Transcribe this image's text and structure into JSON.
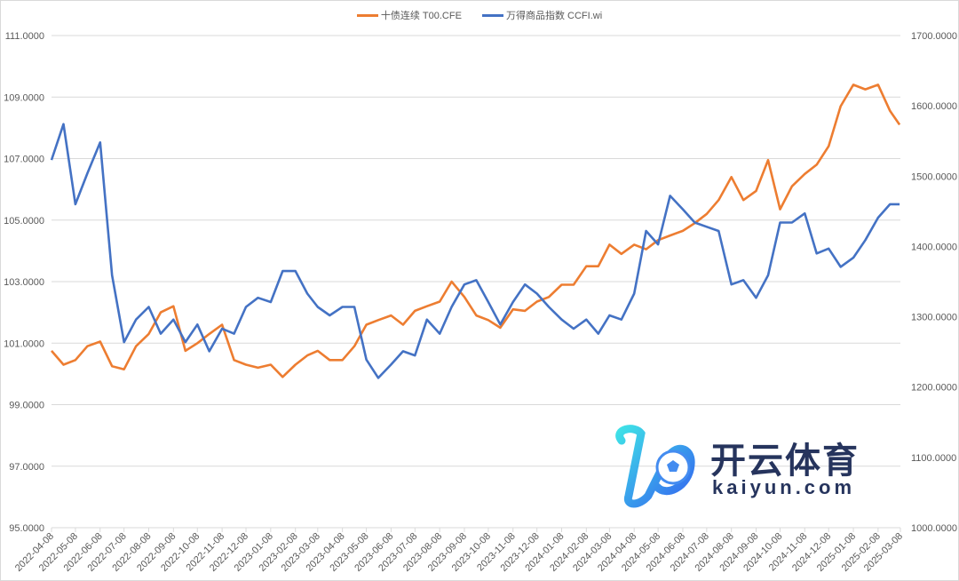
{
  "chart_data": {
    "type": "line",
    "title": "",
    "legend_position": "top",
    "grid": true,
    "y_left": {
      "min": 95,
      "max": 111,
      "step": 2,
      "ticks": [
        "95.0000",
        "97.0000",
        "99.0000",
        "101.0000",
        "103.0000",
        "105.0000",
        "107.0000",
        "109.0000",
        "111.0000"
      ]
    },
    "y_right": {
      "min": 1000,
      "max": 1700,
      "step": 100,
      "ticks": [
        "1000.0000",
        "1100.0000",
        "1200.0000",
        "1300.0000",
        "1400.0000",
        "1500.0000",
        "1600.0000",
        "1700.0000"
      ]
    },
    "x_ticks": [
      "2022-04-08",
      "2022-05-08",
      "2022-06-08",
      "2022-07-08",
      "2022-08-08",
      "2022-09-08",
      "2022-10-08",
      "2022-11-08",
      "2022-12-08",
      "2023-01-08",
      "2023-02-08",
      "2023-03-08",
      "2023-04-08",
      "2023-05-08",
      "2023-06-08",
      "2023-07-08",
      "2023-08-08",
      "2023-09-08",
      "2023-10-08",
      "2023-11-08",
      "2023-12-08",
      "2024-01-08",
      "2024-02-08",
      "2024-03-08",
      "2024-04-08",
      "2024-05-08",
      "2024-06-08",
      "2024-07-08",
      "2024-08-08",
      "2024-09-08",
      "2024-10-08",
      "2024-11-08",
      "2024-12-08",
      "2025-01-08",
      "2025-02-08",
      "2025-03-08"
    ],
    "x": [
      "2022-04-08",
      "2022-04-23",
      "2022-05-08",
      "2022-05-23",
      "2022-06-08",
      "2022-06-23",
      "2022-07-08",
      "2022-07-23",
      "2022-08-08",
      "2022-08-23",
      "2022-09-08",
      "2022-09-23",
      "2022-10-08",
      "2022-10-23",
      "2022-11-08",
      "2022-11-23",
      "2022-12-08",
      "2022-12-23",
      "2023-01-08",
      "2023-01-23",
      "2023-02-08",
      "2023-02-23",
      "2023-03-08",
      "2023-03-23",
      "2023-04-08",
      "2023-04-23",
      "2023-05-08",
      "2023-05-23",
      "2023-06-08",
      "2023-06-23",
      "2023-07-08",
      "2023-07-23",
      "2023-08-08",
      "2023-08-23",
      "2023-09-08",
      "2023-09-23",
      "2023-10-08",
      "2023-10-23",
      "2023-11-08",
      "2023-11-23",
      "2023-12-08",
      "2023-12-23",
      "2024-01-08",
      "2024-01-23",
      "2024-02-08",
      "2024-02-23",
      "2024-03-08",
      "2024-03-23",
      "2024-04-08",
      "2024-04-23",
      "2024-05-08",
      "2024-05-23",
      "2024-06-08",
      "2024-06-23",
      "2024-07-08",
      "2024-07-23",
      "2024-08-08",
      "2024-08-23",
      "2024-09-08",
      "2024-09-23",
      "2024-10-08",
      "2024-10-23",
      "2024-11-08",
      "2024-11-23",
      "2024-12-08",
      "2024-12-23",
      "2025-01-08",
      "2025-01-23",
      "2025-02-08",
      "2025-02-23",
      "2025-03-07"
    ],
    "series": [
      {
        "name": "十债连续 T00.CFE",
        "axis": "left",
        "color": "#ED7D31",
        "values": [
          100.75,
          100.3,
          100.45,
          100.9,
          101.05,
          100.25,
          100.15,
          100.9,
          101.3,
          102.0,
          102.2,
          100.75,
          101.0,
          101.3,
          101.6,
          100.45,
          100.3,
          100.2,
          100.3,
          99.9,
          100.3,
          100.6,
          100.75,
          100.45,
          100.45,
          100.9,
          101.6,
          101.75,
          101.9,
          101.6,
          102.05,
          102.2,
          102.35,
          103.0,
          102.5,
          101.9,
          101.75,
          101.5,
          102.1,
          102.05,
          102.35,
          102.5,
          102.9,
          102.9,
          103.5,
          103.5,
          104.2,
          103.9,
          104.2,
          104.05,
          104.35,
          104.5,
          104.65,
          104.9,
          105.2,
          105.65,
          106.4,
          105.65,
          105.95,
          106.95,
          105.35,
          106.1,
          106.5,
          106.8,
          107.4,
          108.7,
          109.4,
          109.25,
          109.4,
          108.55,
          108.1
        ]
      },
      {
        "name": "万得商品指数 CCFI.wi",
        "axis": "right",
        "color": "#4472C4",
        "values": [
          1523,
          1574,
          1460,
          1504,
          1548,
          1359,
          1264,
          1296,
          1314,
          1276,
          1296,
          1264,
          1289,
          1251,
          1283,
          1276,
          1314,
          1327,
          1321,
          1365,
          1365,
          1333,
          1314,
          1302,
          1314,
          1314,
          1239,
          1213,
          1232,
          1251,
          1245,
          1296,
          1276,
          1314,
          1346,
          1352,
          1321,
          1289,
          1321,
          1346,
          1333,
          1314,
          1296,
          1283,
          1296,
          1276,
          1302,
          1296,
          1333,
          1422,
          1403,
          1472,
          1453,
          1434,
          1428,
          1422,
          1346,
          1352,
          1327,
          1359,
          1434,
          1434,
          1447,
          1390,
          1397,
          1371,
          1384,
          1409,
          1441,
          1460,
          1460
        ]
      }
    ]
  },
  "watermark": {
    "cn": "开云体育",
    "en": "kaiyun.com"
  }
}
